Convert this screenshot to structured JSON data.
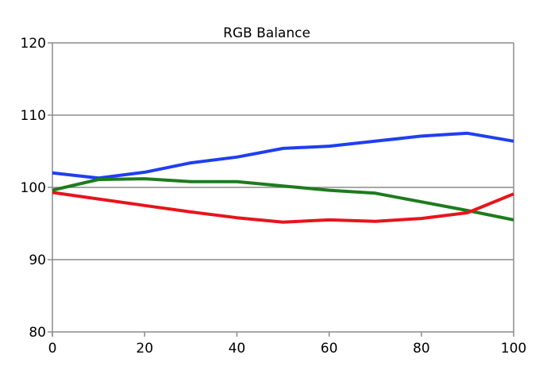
{
  "chart_data": {
    "type": "line",
    "title": "RGB Balance",
    "xlabel": "",
    "ylabel": "",
    "xlim": [
      0,
      100
    ],
    "ylim": [
      80,
      120
    ],
    "x": [
      0,
      10,
      20,
      30,
      40,
      50,
      60,
      70,
      80,
      90,
      100
    ],
    "x_ticks": [
      0,
      20,
      40,
      60,
      80,
      100
    ],
    "y_ticks": [
      80,
      90,
      100,
      110,
      120
    ],
    "grid": "horizontal",
    "legend": "none",
    "series": [
      {
        "color": "#1f3ff0",
        "values": [
          102.0,
          101.3,
          102.1,
          103.4,
          104.2,
          105.4,
          105.7,
          106.4,
          107.1,
          107.5,
          106.4
        ]
      },
      {
        "color": "#1e7b1e",
        "values": [
          99.6,
          101.1,
          101.2,
          100.8,
          100.8,
          100.2,
          99.6,
          99.2,
          98.0,
          96.8,
          95.5
        ]
      },
      {
        "color": "#e8141c",
        "values": [
          99.3,
          98.4,
          97.5,
          96.6,
          95.8,
          95.2,
          95.5,
          95.3,
          95.7,
          96.5,
          99.1
        ]
      }
    ]
  }
}
